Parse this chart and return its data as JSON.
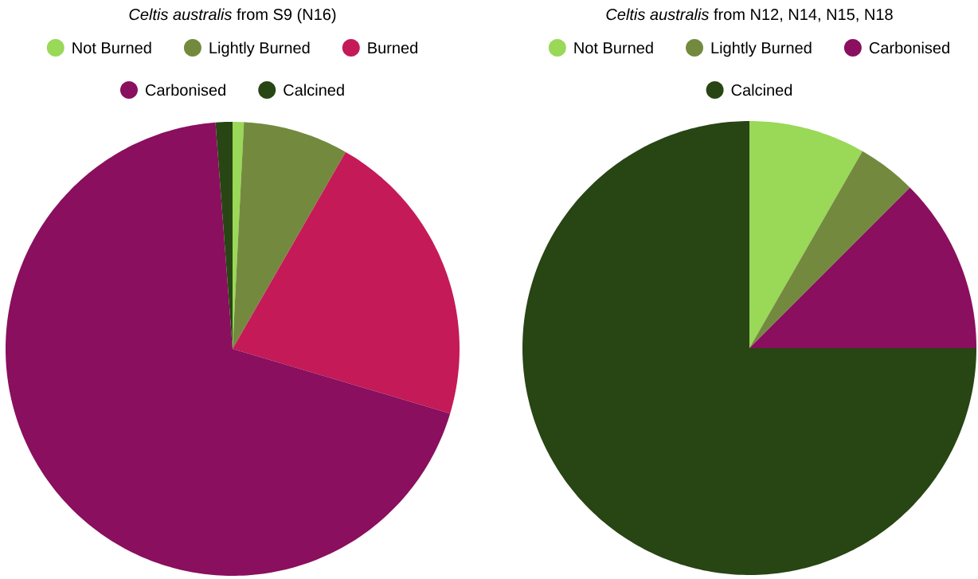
{
  "chart_data": [
    {
      "type": "pie",
      "title": "*Celtis australis*  from S9 (N16)",
      "categories": [
        "Not Burned",
        "Lightly Burned",
        "Burned",
        "Carbonised",
        "Calcined"
      ],
      "values": [
        0.8,
        7.5,
        21.3,
        69.2,
        1.2
      ],
      "colors": [
        "#9ad858",
        "#738a3e",
        "#c41a57",
        "#8a0f5e",
        "#284514"
      ],
      "legend": "top"
    },
    {
      "type": "pie",
      "title": "*Celtis australis*  from N12, N14, N15, N18",
      "categories": [
        "Not Burned",
        "Lightly Burned",
        "Carbonised",
        "Calcined"
      ],
      "values": [
        8.3,
        4.2,
        12.5,
        75.0
      ],
      "colors": [
        "#9ad858",
        "#738a3e",
        "#8a0f5e",
        "#284514"
      ],
      "legend": "top"
    }
  ]
}
